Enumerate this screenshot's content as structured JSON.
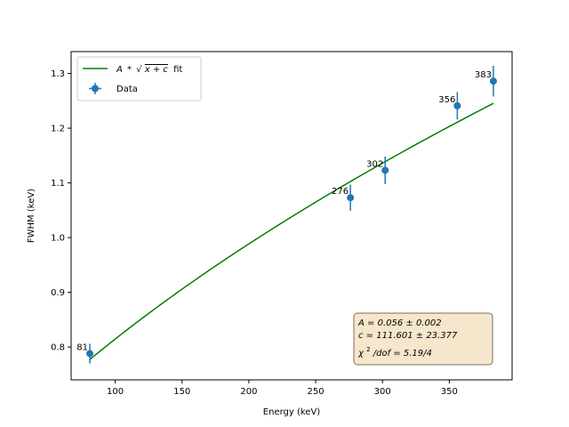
{
  "chart_data": {
    "type": "scatter",
    "xlabel": "Energy (keV)",
    "ylabel": "FWHM (keV)",
    "xlim": [
      67,
      397
    ],
    "ylim": [
      0.74,
      1.34
    ],
    "xticks": [
      100,
      150,
      200,
      250,
      300,
      350
    ],
    "yticks": [
      0.8,
      0.9,
      1.0,
      1.1,
      1.2,
      1.3
    ],
    "grid": false,
    "legend_placement": "upper-left",
    "series": [
      {
        "name": "Data",
        "kind": "errorbar",
        "color": "#1f77b4",
        "x": [
          81,
          276,
          302,
          356,
          383
        ],
        "y": [
          0.788,
          1.073,
          1.123,
          1.241,
          1.286
        ],
        "yerr": [
          0.018,
          0.024,
          0.025,
          0.025,
          0.028
        ],
        "point_labels": [
          "81",
          "276",
          "302",
          "356",
          "383"
        ]
      },
      {
        "name": "A * √x+c fit",
        "kind": "line",
        "color": "#008000",
        "model": {
          "A": 0.056,
          "c": 111.601
        },
        "x_range": [
          81,
          383
        ]
      }
    ],
    "legend": {
      "fit_label_prefix": "A",
      "fit_label_op": "*",
      "fit_label_sqrt": "√",
      "fit_label_arg": "x + c",
      "fit_label_suffix": "fit",
      "data_label": "Data"
    },
    "annotation": {
      "line1": "A = 0.056 ± 0.002",
      "line2": "c = 111.601 ± 23.377",
      "line3_prefix": "χ",
      "line3_sup": "2",
      "line3_rest": "/dof = 5.19/4",
      "background": "#f5e6cc",
      "border": "#7f6f5f"
    }
  }
}
